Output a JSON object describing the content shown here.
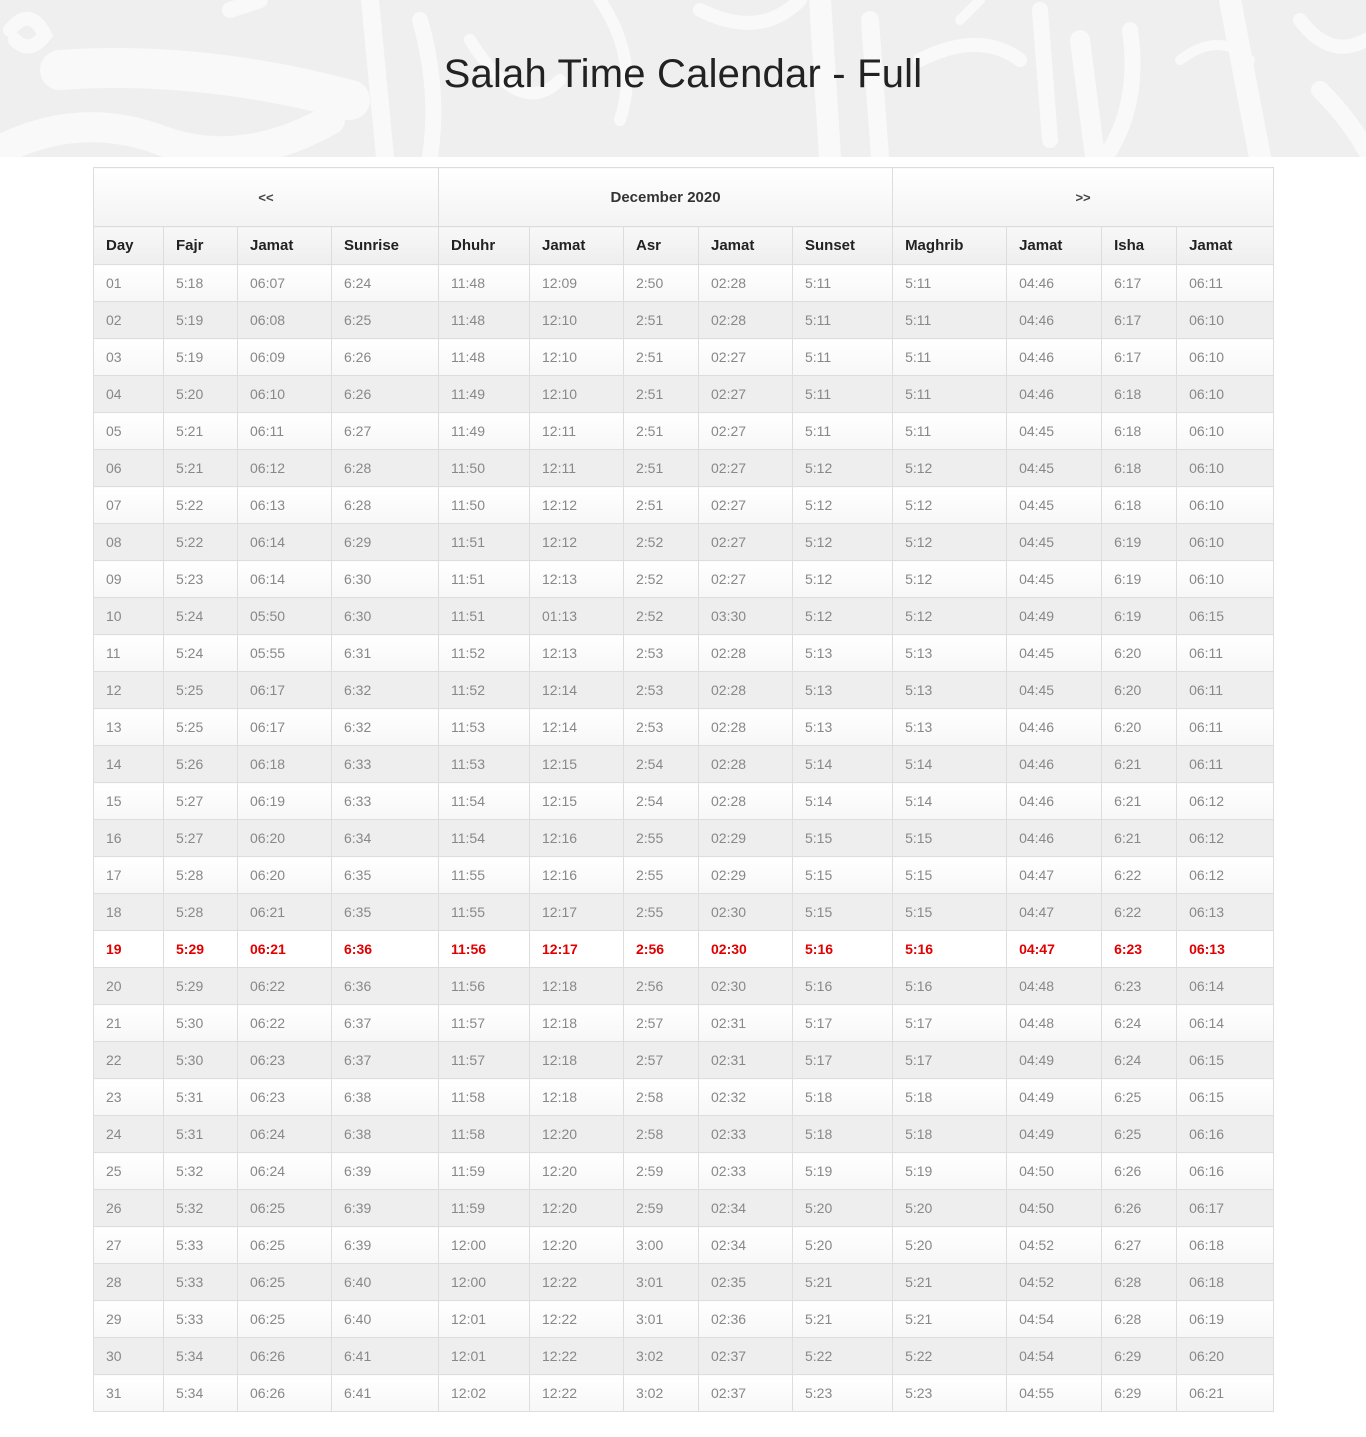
{
  "page": {
    "title": "Salah Time Calendar - Full"
  },
  "nav": {
    "prev_label": "<<",
    "month_label": "December 2020",
    "next_label": ">>"
  },
  "colors": {
    "today_highlight": "#e00000",
    "banner_bg": "#efefef",
    "row_alt": "#eeeeee"
  },
  "table": {
    "headers": [
      "Day",
      "Fajr",
      "Jamat",
      "Sunrise",
      "Dhuhr",
      "Jamat",
      "Asr",
      "Jamat",
      "Sunset",
      "Maghrib",
      "Jamat",
      "Isha",
      "Jamat"
    ],
    "today_index": 18,
    "rows": [
      [
        "01",
        "5:18",
        "06:07",
        "6:24",
        "11:48",
        "12:09",
        "2:50",
        "02:28",
        "5:11",
        "5:11",
        "04:46",
        "6:17",
        "06:11"
      ],
      [
        "02",
        "5:19",
        "06:08",
        "6:25",
        "11:48",
        "12:10",
        "2:51",
        "02:28",
        "5:11",
        "5:11",
        "04:46",
        "6:17",
        "06:10"
      ],
      [
        "03",
        "5:19",
        "06:09",
        "6:26",
        "11:48",
        "12:10",
        "2:51",
        "02:27",
        "5:11",
        "5:11",
        "04:46",
        "6:17",
        "06:10"
      ],
      [
        "04",
        "5:20",
        "06:10",
        "6:26",
        "11:49",
        "12:10",
        "2:51",
        "02:27",
        "5:11",
        "5:11",
        "04:46",
        "6:18",
        "06:10"
      ],
      [
        "05",
        "5:21",
        "06:11",
        "6:27",
        "11:49",
        "12:11",
        "2:51",
        "02:27",
        "5:11",
        "5:11",
        "04:45",
        "6:18",
        "06:10"
      ],
      [
        "06",
        "5:21",
        "06:12",
        "6:28",
        "11:50",
        "12:11",
        "2:51",
        "02:27",
        "5:12",
        "5:12",
        "04:45",
        "6:18",
        "06:10"
      ],
      [
        "07",
        "5:22",
        "06:13",
        "6:28",
        "11:50",
        "12:12",
        "2:51",
        "02:27",
        "5:12",
        "5:12",
        "04:45",
        "6:18",
        "06:10"
      ],
      [
        "08",
        "5:22",
        "06:14",
        "6:29",
        "11:51",
        "12:12",
        "2:52",
        "02:27",
        "5:12",
        "5:12",
        "04:45",
        "6:19",
        "06:10"
      ],
      [
        "09",
        "5:23",
        "06:14",
        "6:30",
        "11:51",
        "12:13",
        "2:52",
        "02:27",
        "5:12",
        "5:12",
        "04:45",
        "6:19",
        "06:10"
      ],
      [
        "10",
        "5:24",
        "05:50",
        "6:30",
        "11:51",
        "01:13",
        "2:52",
        "03:30",
        "5:12",
        "5:12",
        "04:49",
        "6:19",
        "06:15"
      ],
      [
        "11",
        "5:24",
        "05:55",
        "6:31",
        "11:52",
        "12:13",
        "2:53",
        "02:28",
        "5:13",
        "5:13",
        "04:45",
        "6:20",
        "06:11"
      ],
      [
        "12",
        "5:25",
        "06:17",
        "6:32",
        "11:52",
        "12:14",
        "2:53",
        "02:28",
        "5:13",
        "5:13",
        "04:45",
        "6:20",
        "06:11"
      ],
      [
        "13",
        "5:25",
        "06:17",
        "6:32",
        "11:53",
        "12:14",
        "2:53",
        "02:28",
        "5:13",
        "5:13",
        "04:46",
        "6:20",
        "06:11"
      ],
      [
        "14",
        "5:26",
        "06:18",
        "6:33",
        "11:53",
        "12:15",
        "2:54",
        "02:28",
        "5:14",
        "5:14",
        "04:46",
        "6:21",
        "06:11"
      ],
      [
        "15",
        "5:27",
        "06:19",
        "6:33",
        "11:54",
        "12:15",
        "2:54",
        "02:28",
        "5:14",
        "5:14",
        "04:46",
        "6:21",
        "06:12"
      ],
      [
        "16",
        "5:27",
        "06:20",
        "6:34",
        "11:54",
        "12:16",
        "2:55",
        "02:29",
        "5:15",
        "5:15",
        "04:46",
        "6:21",
        "06:12"
      ],
      [
        "17",
        "5:28",
        "06:20",
        "6:35",
        "11:55",
        "12:16",
        "2:55",
        "02:29",
        "5:15",
        "5:15",
        "04:47",
        "6:22",
        "06:12"
      ],
      [
        "18",
        "5:28",
        "06:21",
        "6:35",
        "11:55",
        "12:17",
        "2:55",
        "02:30",
        "5:15",
        "5:15",
        "04:47",
        "6:22",
        "06:13"
      ],
      [
        "19",
        "5:29",
        "06:21",
        "6:36",
        "11:56",
        "12:17",
        "2:56",
        "02:30",
        "5:16",
        "5:16",
        "04:47",
        "6:23",
        "06:13"
      ],
      [
        "20",
        "5:29",
        "06:22",
        "6:36",
        "11:56",
        "12:18",
        "2:56",
        "02:30",
        "5:16",
        "5:16",
        "04:48",
        "6:23",
        "06:14"
      ],
      [
        "21",
        "5:30",
        "06:22",
        "6:37",
        "11:57",
        "12:18",
        "2:57",
        "02:31",
        "5:17",
        "5:17",
        "04:48",
        "6:24",
        "06:14"
      ],
      [
        "22",
        "5:30",
        "06:23",
        "6:37",
        "11:57",
        "12:18",
        "2:57",
        "02:31",
        "5:17",
        "5:17",
        "04:49",
        "6:24",
        "06:15"
      ],
      [
        "23",
        "5:31",
        "06:23",
        "6:38",
        "11:58",
        "12:18",
        "2:58",
        "02:32",
        "5:18",
        "5:18",
        "04:49",
        "6:25",
        "06:15"
      ],
      [
        "24",
        "5:31",
        "06:24",
        "6:38",
        "11:58",
        "12:20",
        "2:58",
        "02:33",
        "5:18",
        "5:18",
        "04:49",
        "6:25",
        "06:16"
      ],
      [
        "25",
        "5:32",
        "06:24",
        "6:39",
        "11:59",
        "12:20",
        "2:59",
        "02:33",
        "5:19",
        "5:19",
        "04:50",
        "6:26",
        "06:16"
      ],
      [
        "26",
        "5:32",
        "06:25",
        "6:39",
        "11:59",
        "12:20",
        "2:59",
        "02:34",
        "5:20",
        "5:20",
        "04:50",
        "6:26",
        "06:17"
      ],
      [
        "27",
        "5:33",
        "06:25",
        "6:39",
        "12:00",
        "12:20",
        "3:00",
        "02:34",
        "5:20",
        "5:20",
        "04:52",
        "6:27",
        "06:18"
      ],
      [
        "28",
        "5:33",
        "06:25",
        "6:40",
        "12:00",
        "12:22",
        "3:01",
        "02:35",
        "5:21",
        "5:21",
        "04:52",
        "6:28",
        "06:18"
      ],
      [
        "29",
        "5:33",
        "06:25",
        "6:40",
        "12:01",
        "12:22",
        "3:01",
        "02:36",
        "5:21",
        "5:21",
        "04:54",
        "6:28",
        "06:19"
      ],
      [
        "30",
        "5:34",
        "06:26",
        "6:41",
        "12:01",
        "12:22",
        "3:02",
        "02:37",
        "5:22",
        "5:22",
        "04:54",
        "6:29",
        "06:20"
      ],
      [
        "31",
        "5:34",
        "06:26",
        "6:41",
        "12:02",
        "12:22",
        "3:02",
        "02:37",
        "5:23",
        "5:23",
        "04:55",
        "6:29",
        "06:21"
      ]
    ]
  }
}
